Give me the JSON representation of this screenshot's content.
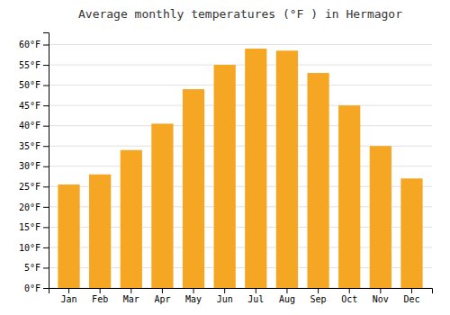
{
  "chart_data": {
    "type": "bar",
    "title": "Average monthly temperatures (°F ) in Hermagor",
    "categories": [
      "Jan",
      "Feb",
      "Mar",
      "Apr",
      "May",
      "Jun",
      "Jul",
      "Aug",
      "Sep",
      "Oct",
      "Nov",
      "Dec"
    ],
    "values": [
      25.5,
      28.0,
      34.0,
      40.5,
      49.0,
      55.0,
      59.0,
      58.5,
      53.0,
      45.0,
      35.0,
      27.0
    ],
    "color": "#F5A623",
    "ylim": [
      0,
      63
    ],
    "yticks": [
      {
        "value": 0,
        "label": "0°F"
      },
      {
        "value": 5,
        "label": "5°F"
      },
      {
        "value": 10,
        "label": "10°F"
      },
      {
        "value": 15,
        "label": "15°F"
      },
      {
        "value": 20,
        "label": "20°F"
      },
      {
        "value": 25,
        "label": "25°F"
      },
      {
        "value": 30,
        "label": "30°F"
      },
      {
        "value": 35,
        "label": "35°F"
      },
      {
        "value": 40,
        "label": "40°F"
      },
      {
        "value": 45,
        "label": "45°F"
      },
      {
        "value": 50,
        "label": "50°F"
      },
      {
        "value": 55,
        "label": "55°F"
      },
      {
        "value": 60,
        "label": "60°F"
      }
    ],
    "grid": true
  }
}
